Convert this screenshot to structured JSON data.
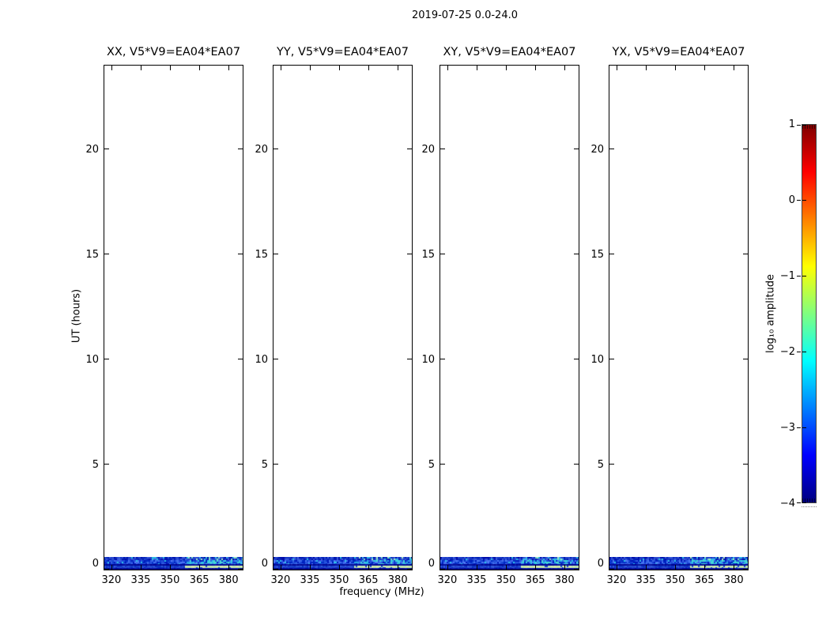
{
  "chart_data": {
    "type": "heatmap",
    "title": "2019-07-25 0.0-24.0",
    "panels": [
      {
        "polarization": "XX",
        "baseline": "V5*V9=EA04*EA07",
        "title": "XX, V5*V9=EA04*EA07"
      },
      {
        "polarization": "YY",
        "baseline": "V5*V9=EA04*EA07",
        "title": "YY, V5*V9=EA04*EA07"
      },
      {
        "polarization": "XY",
        "baseline": "V5*V9=EA04*EA07",
        "title": "XY, V5*V9=EA04*EA07"
      },
      {
        "polarization": "YX",
        "baseline": "V5*V9=EA04*EA07",
        "title": "YX, V5*V9=EA04*EA07"
      }
    ],
    "x_axis": {
      "label": "frequency (MHz)",
      "ticks": [
        320,
        335,
        350,
        365,
        380
      ],
      "range": [
        316.4,
        387.2
      ]
    },
    "y_axis": {
      "label": "UT (hours)",
      "ticks": [
        0,
        5,
        10,
        15,
        20
      ],
      "range": [
        0,
        24
      ]
    },
    "colorbar": {
      "label": "log₁₀ amplitude",
      "ticks": [
        1,
        0,
        -1,
        -2,
        -3,
        -4
      ],
      "tick_labels": [
        "1",
        "0",
        "−1",
        "−2",
        "−3",
        "−4"
      ],
      "range": [
        -4,
        1
      ],
      "colormap": "jet",
      "gradient_stops": [
        [
          "#7f0000",
          0
        ],
        [
          "#ff0000",
          12.5
        ],
        [
          "#ffff00",
          37.5
        ],
        [
          "#00ffff",
          62.5
        ],
        [
          "#0000ff",
          87.5
        ],
        [
          "#00007f",
          100
        ]
      ]
    },
    "data_extent": {
      "ut_range_hours": [
        0.0,
        0.6
      ],
      "note": "Visibility amplitudes present only in a thin band near UT 0.0-0.6 h at the bottom of every panel; mostly blue (log10 amp ~ -3 to -3.5) noise with brighter cyan patches above ~358 MHz and pale yellow-green segments (~ -1.5) in a thin row on the right half; identical pattern in all four polarizations"
    },
    "strip": {
      "hot_start_frac": 0.58,
      "rows": [
        {
          "h": 4,
          "base": "#1535c4",
          "jitter": 45,
          "hot_chance": 0.3,
          "left_fleck_chance": 0.05,
          "hot_colors": [
            "#2ec0e4",
            "#7fe0c8",
            "#a8eac0",
            "#35b4ec"
          ]
        },
        {
          "h": 5,
          "base": "#1c49d8",
          "jitter": 55,
          "hot_chance": 0.5,
          "left_fleck_chance": 0.06,
          "hot_colors": [
            "#2fc4e8",
            "#3fd8dc",
            "#28a8e8",
            "#49dcd2"
          ]
        },
        {
          "h": 2,
          "base": "#000a96",
          "jitter": 14,
          "hot_chance": 0,
          "hot_colors": []
        },
        {
          "h": 3,
          "base": "#1e44cc",
          "jitter": 25,
          "hot_chance": 0.9,
          "segmented": true,
          "gap_chance": 0.1,
          "hot_colors": [
            "#cdeca4",
            "#b9ebb4",
            "#dcf0ac"
          ]
        },
        {
          "h": 2,
          "base": "#000a96",
          "jitter": 14,
          "hot_chance": 0,
          "hot_colors": []
        }
      ]
    }
  }
}
